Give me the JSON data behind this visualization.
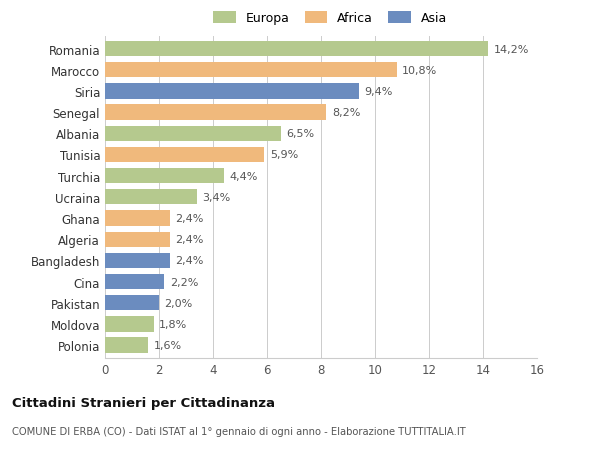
{
  "categories": [
    "Romania",
    "Marocco",
    "Siria",
    "Senegal",
    "Albania",
    "Tunisia",
    "Turchia",
    "Ucraina",
    "Ghana",
    "Algeria",
    "Bangladesh",
    "Cina",
    "Pakistan",
    "Moldova",
    "Polonia"
  ],
  "values": [
    14.2,
    10.8,
    9.4,
    8.2,
    6.5,
    5.9,
    4.4,
    3.4,
    2.4,
    2.4,
    2.4,
    2.2,
    2.0,
    1.8,
    1.6
  ],
  "labels": [
    "14,2%",
    "10,8%",
    "9,4%",
    "8,2%",
    "6,5%",
    "5,9%",
    "4,4%",
    "3,4%",
    "2,4%",
    "2,4%",
    "2,4%",
    "2,2%",
    "2,0%",
    "1,8%",
    "1,6%"
  ],
  "colors": [
    "#b5c98e",
    "#f0b97c",
    "#6b8cbf",
    "#f0b97c",
    "#b5c98e",
    "#f0b97c",
    "#b5c98e",
    "#b5c98e",
    "#f0b97c",
    "#f0b97c",
    "#6b8cbf",
    "#6b8cbf",
    "#6b8cbf",
    "#b5c98e",
    "#b5c98e"
  ],
  "continent_labels": [
    "Europa",
    "Africa",
    "Asia"
  ],
  "continent_colors": [
    "#b5c98e",
    "#f0b97c",
    "#6b8cbf"
  ],
  "xlim": [
    0,
    16
  ],
  "xticks": [
    0,
    2,
    4,
    6,
    8,
    10,
    12,
    14,
    16
  ],
  "title": "Cittadini Stranieri per Cittadinanza",
  "subtitle": "COMUNE DI ERBA (CO) - Dati ISTAT al 1° gennaio di ogni anno - Elaborazione TUTTITALIA.IT",
  "background_color": "#ffffff",
  "grid_color": "#cccccc"
}
